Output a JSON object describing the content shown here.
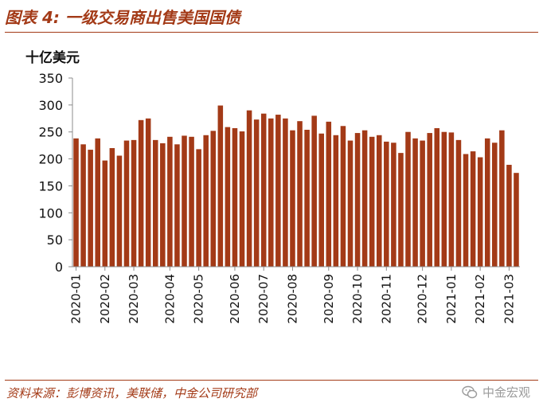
{
  "figure_title": "图表 4: 一级交易商出售美国国债",
  "source": "资料来源：彭博资讯，美联储，中金公司研究部",
  "watermark": {
    "text": "中金宏观",
    "icon": "wechat-icon"
  },
  "colors": {
    "bar": "#a33a17",
    "accent": "#a33a17",
    "axis": "#8c8c8c"
  },
  "chart_data": {
    "type": "bar",
    "frequency": "weekly",
    "unit_label": "十亿美元",
    "y_ticks": [
      0,
      50,
      100,
      150,
      200,
      250,
      300,
      350
    ],
    "ylim": [
      0,
      350
    ],
    "grid": false,
    "legend": "none",
    "x_tick_labels": [
      "2020-01",
      "2020-02",
      "2020-03",
      "2020-04",
      "2020-05",
      "2020-06",
      "2020-07",
      "2020-08",
      "2020-09",
      "2020-10",
      "2020-11",
      "2020-12",
      "2021-01",
      "2021-02",
      "2021-03"
    ],
    "x_tick_bar_index": [
      0,
      4,
      8,
      13,
      17,
      22,
      26,
      30,
      35,
      39,
      43,
      48,
      52,
      56,
      60
    ],
    "values": [
      238,
      227,
      217,
      238,
      197,
      220,
      206,
      234,
      235,
      272,
      275,
      235,
      229,
      241,
      227,
      243,
      241,
      218,
      244,
      252,
      299,
      259,
      257,
      251,
      290,
      273,
      284,
      275,
      282,
      275,
      253,
      270,
      254,
      280,
      247,
      269,
      244,
      261,
      234,
      248,
      253,
      241,
      244,
      232,
      230,
      211,
      250,
      238,
      234,
      248,
      257,
      250,
      249,
      235,
      209,
      214,
      203,
      238,
      230,
      253,
      189,
      174
    ]
  }
}
